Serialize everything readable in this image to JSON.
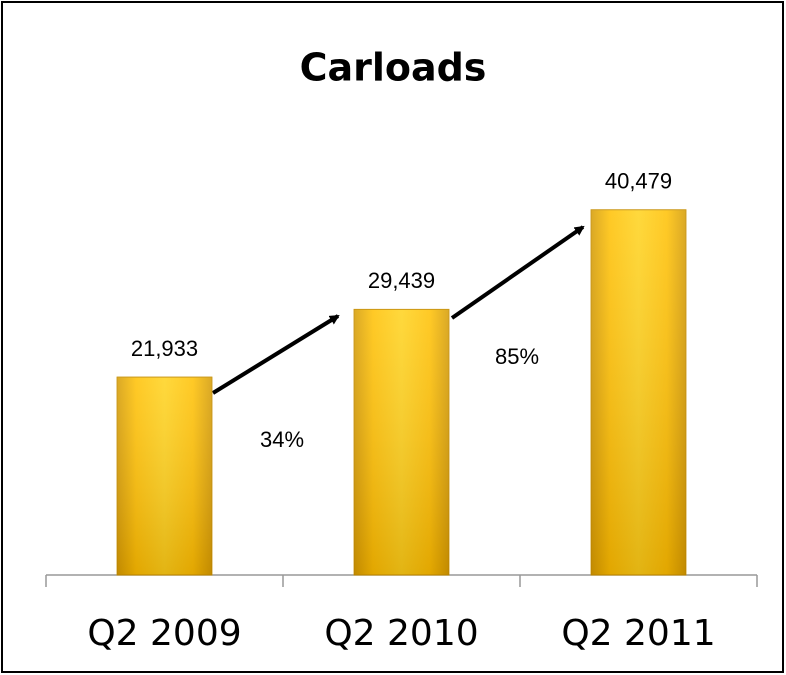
{
  "chart_data": {
    "type": "bar",
    "title": "Carloads",
    "categories": [
      "Q2 2009",
      "Q2 2010",
      "Q2 2011"
    ],
    "values": [
      21933,
      29439,
      40479
    ],
    "value_labels": [
      "21,933",
      "29,439",
      "40,479"
    ],
    "color": "#ffc000",
    "ylim": [
      0,
      45000
    ],
    "annotations": [
      "34%",
      "85%"
    ]
  }
}
